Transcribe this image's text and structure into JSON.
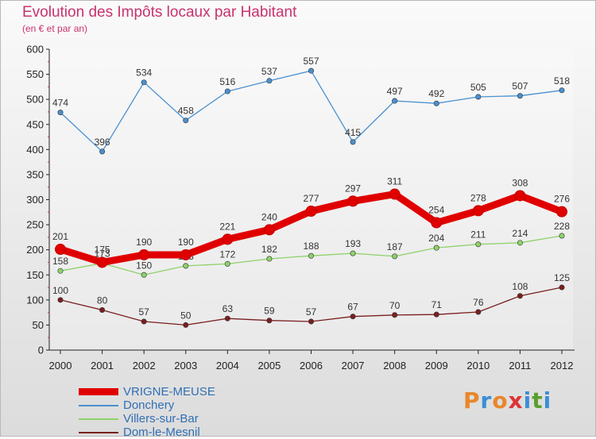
{
  "header": {
    "title": "Evolution des Impôts locaux par Habitant",
    "subtitle": "(en € et par an)"
  },
  "brand": {
    "letters": [
      "P",
      "r",
      "o",
      "x",
      "i",
      "t",
      "i"
    ],
    "colors": [
      "#e8872b",
      "#3b8fd6",
      "#e8872b",
      "#d33",
      "#3b8fd6",
      "#5aa02c",
      "#3b8fd6"
    ]
  },
  "chart_data": {
    "type": "line",
    "title": "Evolution des Impôts locaux par Habitant",
    "subtitle": "(en € et par an)",
    "xlabel": "",
    "ylabel": "",
    "x": [
      "2000",
      "2001",
      "2002",
      "2003",
      "2004",
      "2005",
      "2006",
      "2007",
      "2008",
      "2009",
      "2010",
      "2011",
      "2012"
    ],
    "ylim": [
      0,
      600
    ],
    "yticks": [
      "0",
      "50",
      "100",
      "150",
      "200",
      "250",
      "300",
      "350",
      "400",
      "450",
      "500",
      "550",
      "600"
    ],
    "grid": false,
    "legend_position": "bottom-left",
    "series": [
      {
        "name": "VRIGNE-MEUSE",
        "color": "#e00000",
        "emphasis": true,
        "values": [
          201,
          175,
          190,
          190,
          221,
          240,
          277,
          297,
          311,
          254,
          278,
          308,
          276
        ]
      },
      {
        "name": "Donchery",
        "color": "#4a90d0",
        "emphasis": false,
        "values": [
          474,
          396,
          534,
          458,
          516,
          537,
          557,
          415,
          497,
          492,
          505,
          507,
          518
        ]
      },
      {
        "name": "Villers-sur-Bar",
        "color": "#8ed26a",
        "emphasis": false,
        "values": [
          158,
          173,
          150,
          168,
          172,
          182,
          188,
          193,
          187,
          204,
          211,
          214,
          228
        ]
      },
      {
        "name": "Dom-le-Mesnil",
        "color": "#7a1f1f",
        "emphasis": false,
        "values": [
          100,
          80,
          57,
          50,
          63,
          59,
          57,
          67,
          70,
          71,
          76,
          108,
          125
        ]
      }
    ]
  }
}
